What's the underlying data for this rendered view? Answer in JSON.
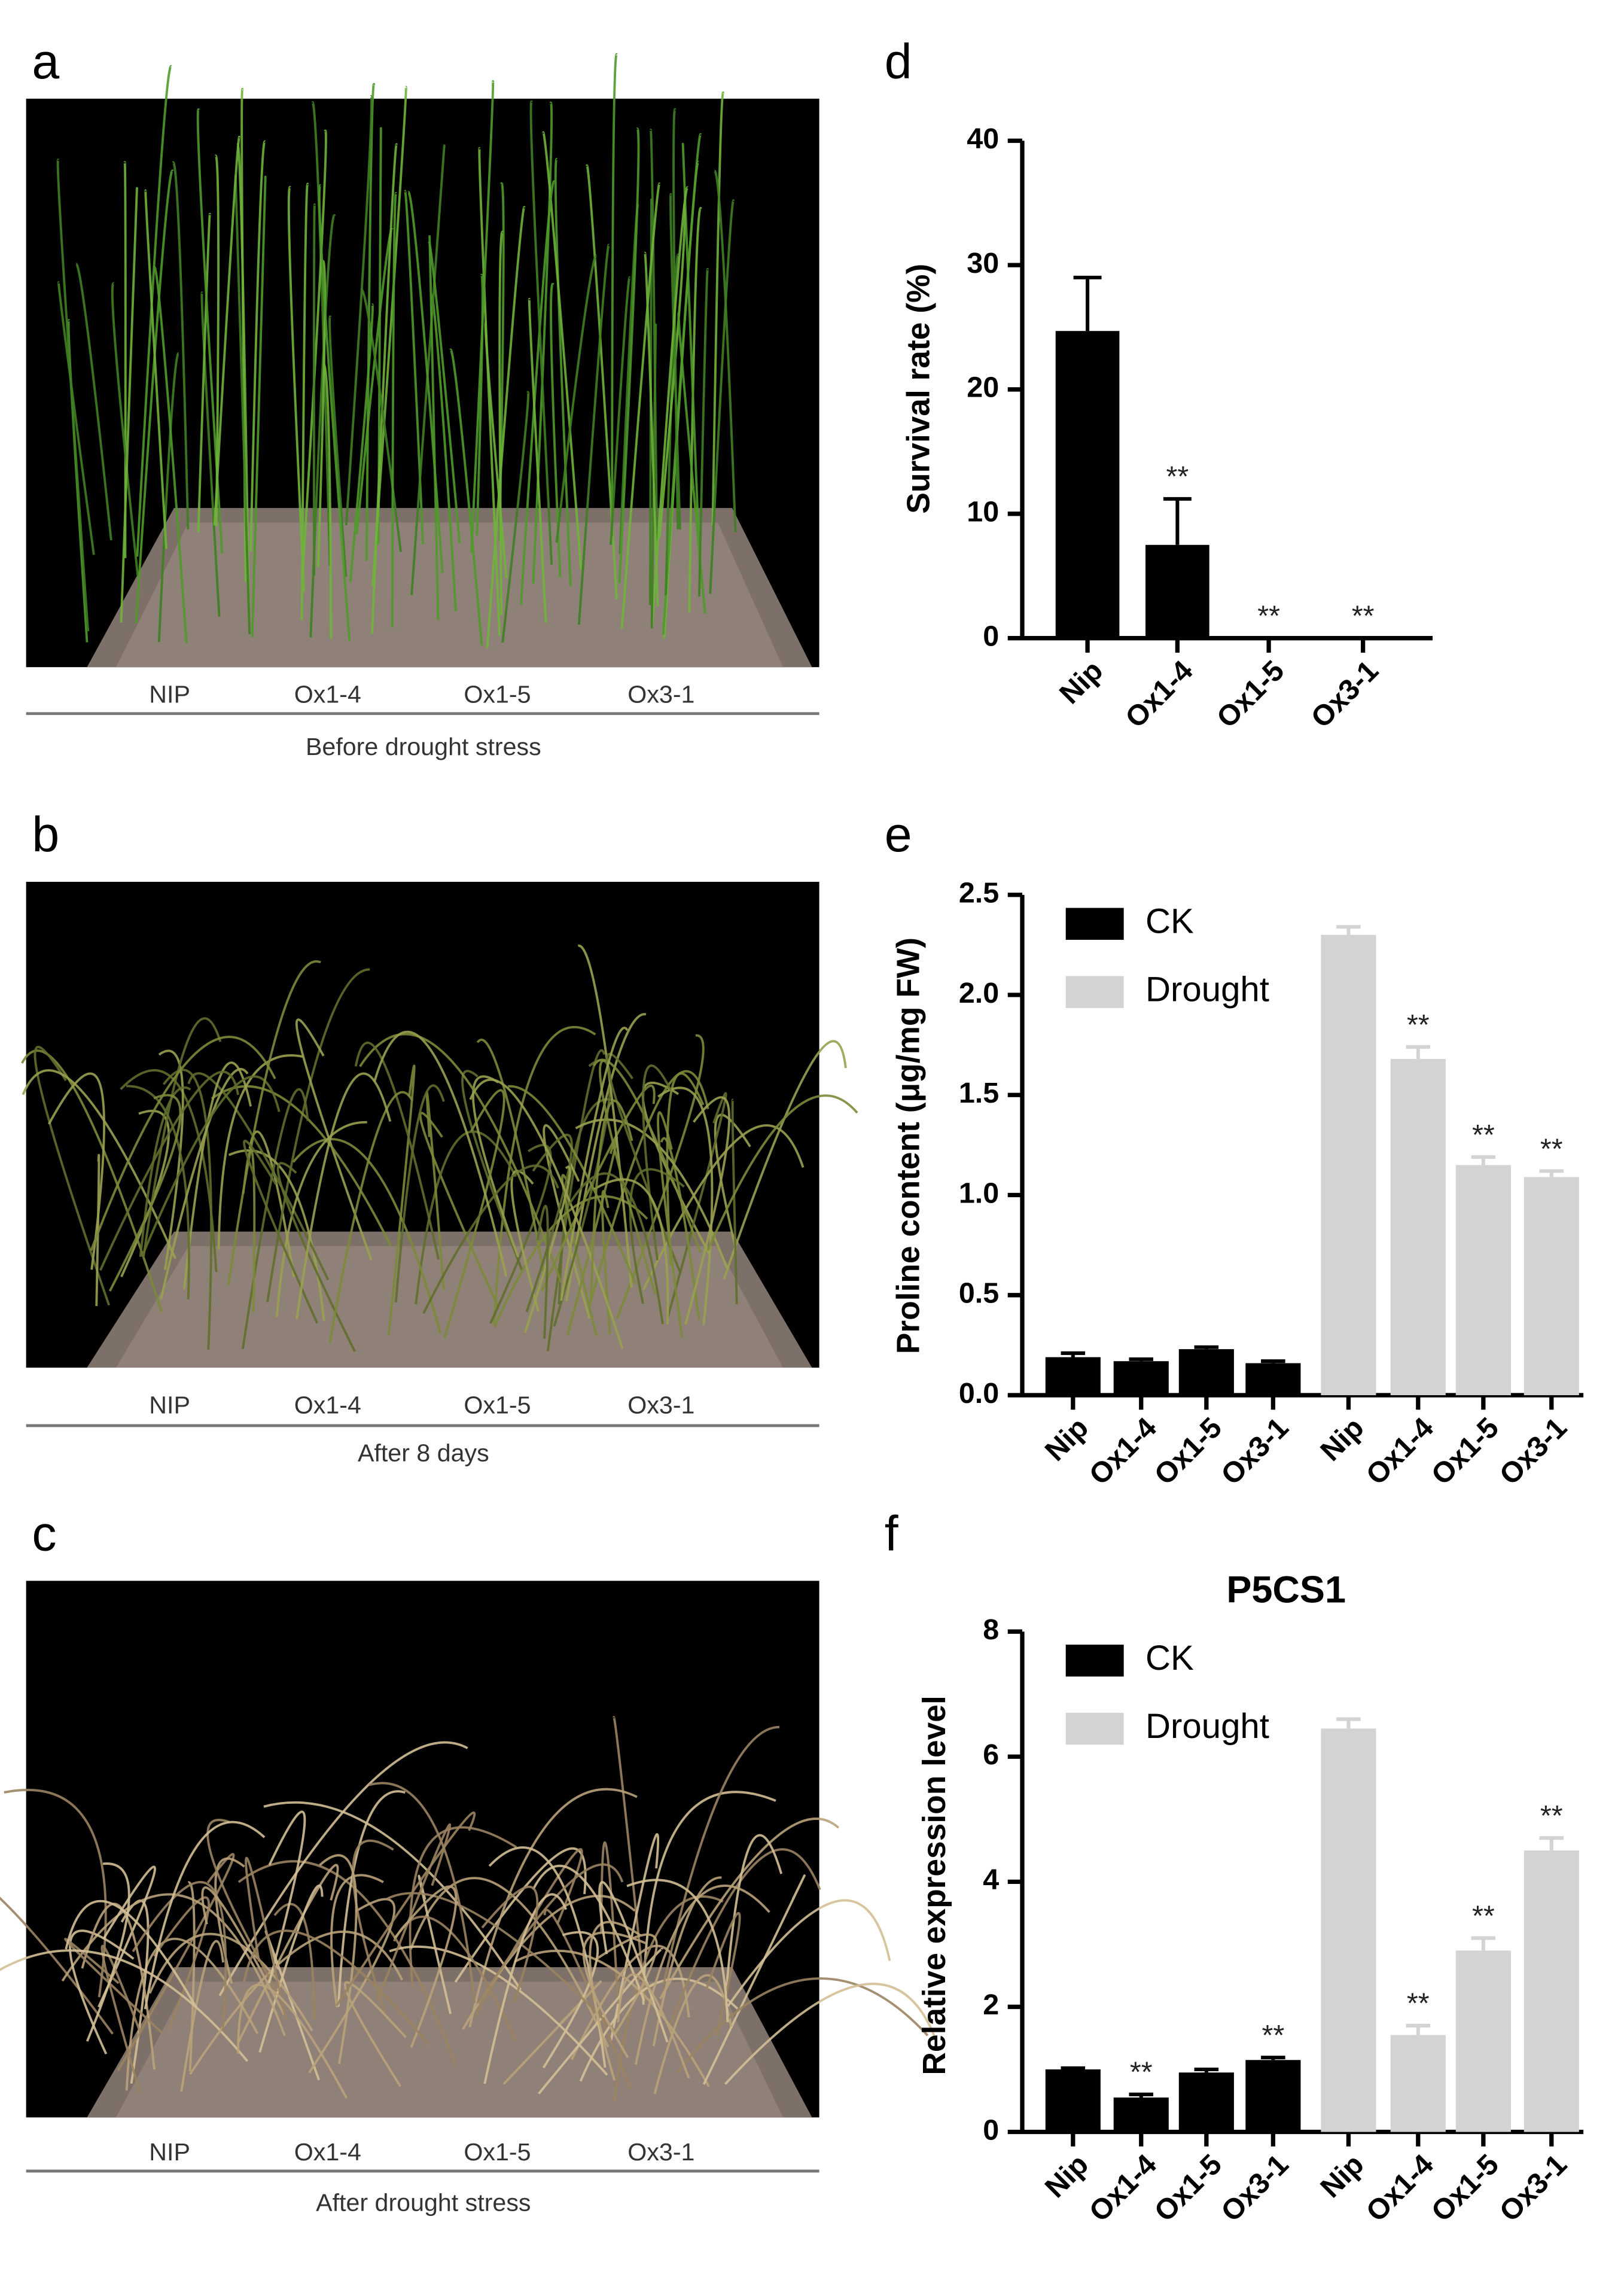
{
  "photos": [
    {
      "label": "a",
      "groups": [
        "NIP",
        "Ox1-4",
        "Ox1-5",
        "Ox3-1"
      ],
      "caption": "Before drought stress"
    },
    {
      "label": "b",
      "groups": [
        "NIP",
        "Ox1-4",
        "Ox1-5",
        "Ox3-1"
      ],
      "caption": "After 8 days"
    },
    {
      "label": "c",
      "groups": [
        "NIP",
        "Ox1-4",
        "Ox1-5",
        "Ox3-1"
      ],
      "caption": "After drought stress"
    }
  ],
  "chart_data": [
    {
      "type": "bar",
      "label": "d",
      "ylabel": "Survival rate (%)",
      "categories": [
        "Nip",
        "Ox1-4",
        "Ox1-5",
        "Ox3-1"
      ],
      "series": [
        {
          "color": "#000000",
          "values": [
            24.7,
            7.5,
            0,
            0
          ],
          "errors": [
            4.3,
            3.7,
            0,
            0
          ],
          "annotations": [
            null,
            "**",
            "**",
            "**"
          ]
        }
      ],
      "ylim": [
        0,
        40
      ],
      "yticks": [
        0,
        10,
        20,
        30,
        40
      ]
    },
    {
      "type": "bar",
      "label": "e",
      "ylabel": "Proline content (μg/mg FW)",
      "categories": [
        "Nip",
        "Ox1-4",
        "Ox1-5",
        "Ox3-1",
        "Nip",
        "Ox1-4",
        "Ox1-5",
        "Ox3-1"
      ],
      "series": [
        {
          "name": "CK",
          "color": "#000000",
          "values": [
            0.19,
            0.17,
            0.23,
            0.16,
            null,
            null,
            null,
            null
          ],
          "errors": [
            0.02,
            0.01,
            0.01,
            0.01,
            null,
            null,
            null,
            null
          ],
          "annotations": [
            null,
            null,
            null,
            null,
            null,
            null,
            null,
            null
          ]
        },
        {
          "name": "Drought",
          "color": "#d3d3d3",
          "values": [
            null,
            null,
            null,
            null,
            2.3,
            1.68,
            1.15,
            1.09
          ],
          "errors": [
            null,
            null,
            null,
            null,
            0.04,
            0.06,
            0.04,
            0.03
          ],
          "annotations": [
            null,
            null,
            null,
            null,
            null,
            "**",
            "**",
            "**"
          ]
        }
      ],
      "ylim": [
        0,
        2.5
      ],
      "yticks": [
        {
          "value": 0,
          "label": "0.0"
        },
        0.5,
        {
          "value": 1,
          "label": "1.0"
        },
        1.5,
        {
          "value": 2,
          "label": "2.0"
        },
        2.5
      ],
      "legend": "upper left"
    },
    {
      "type": "bar",
      "label": "f",
      "title": "P5CS1",
      "ylabel": "Relative expression level",
      "categories": [
        "Nip",
        "Ox1-4",
        "Ox1-5",
        "Ox3-1",
        "Nip",
        "Ox1-4",
        "Ox1-5",
        "Ox3-1"
      ],
      "series": [
        {
          "name": "CK",
          "color": "#000000",
          "values": [
            1.0,
            0.55,
            0.95,
            1.15,
            null,
            null,
            null,
            null
          ],
          "errors": [
            0.02,
            0.05,
            0.05,
            0.04,
            null,
            null,
            null,
            null
          ],
          "annotations": [
            null,
            "**",
            null,
            "**",
            null,
            null,
            null,
            null
          ]
        },
        {
          "name": "Drought",
          "color": "#d3d3d3",
          "values": [
            null,
            null,
            null,
            null,
            6.45,
            1.55,
            2.9,
            4.5
          ],
          "errors": [
            null,
            null,
            null,
            null,
            0.15,
            0.15,
            0.2,
            0.2
          ],
          "annotations": [
            null,
            null,
            null,
            null,
            null,
            "**",
            "**",
            "**"
          ]
        }
      ],
      "ylim": [
        0,
        8
      ],
      "yticks": [
        0,
        2,
        4,
        6,
        8
      ],
      "legend": "upper left"
    }
  ]
}
